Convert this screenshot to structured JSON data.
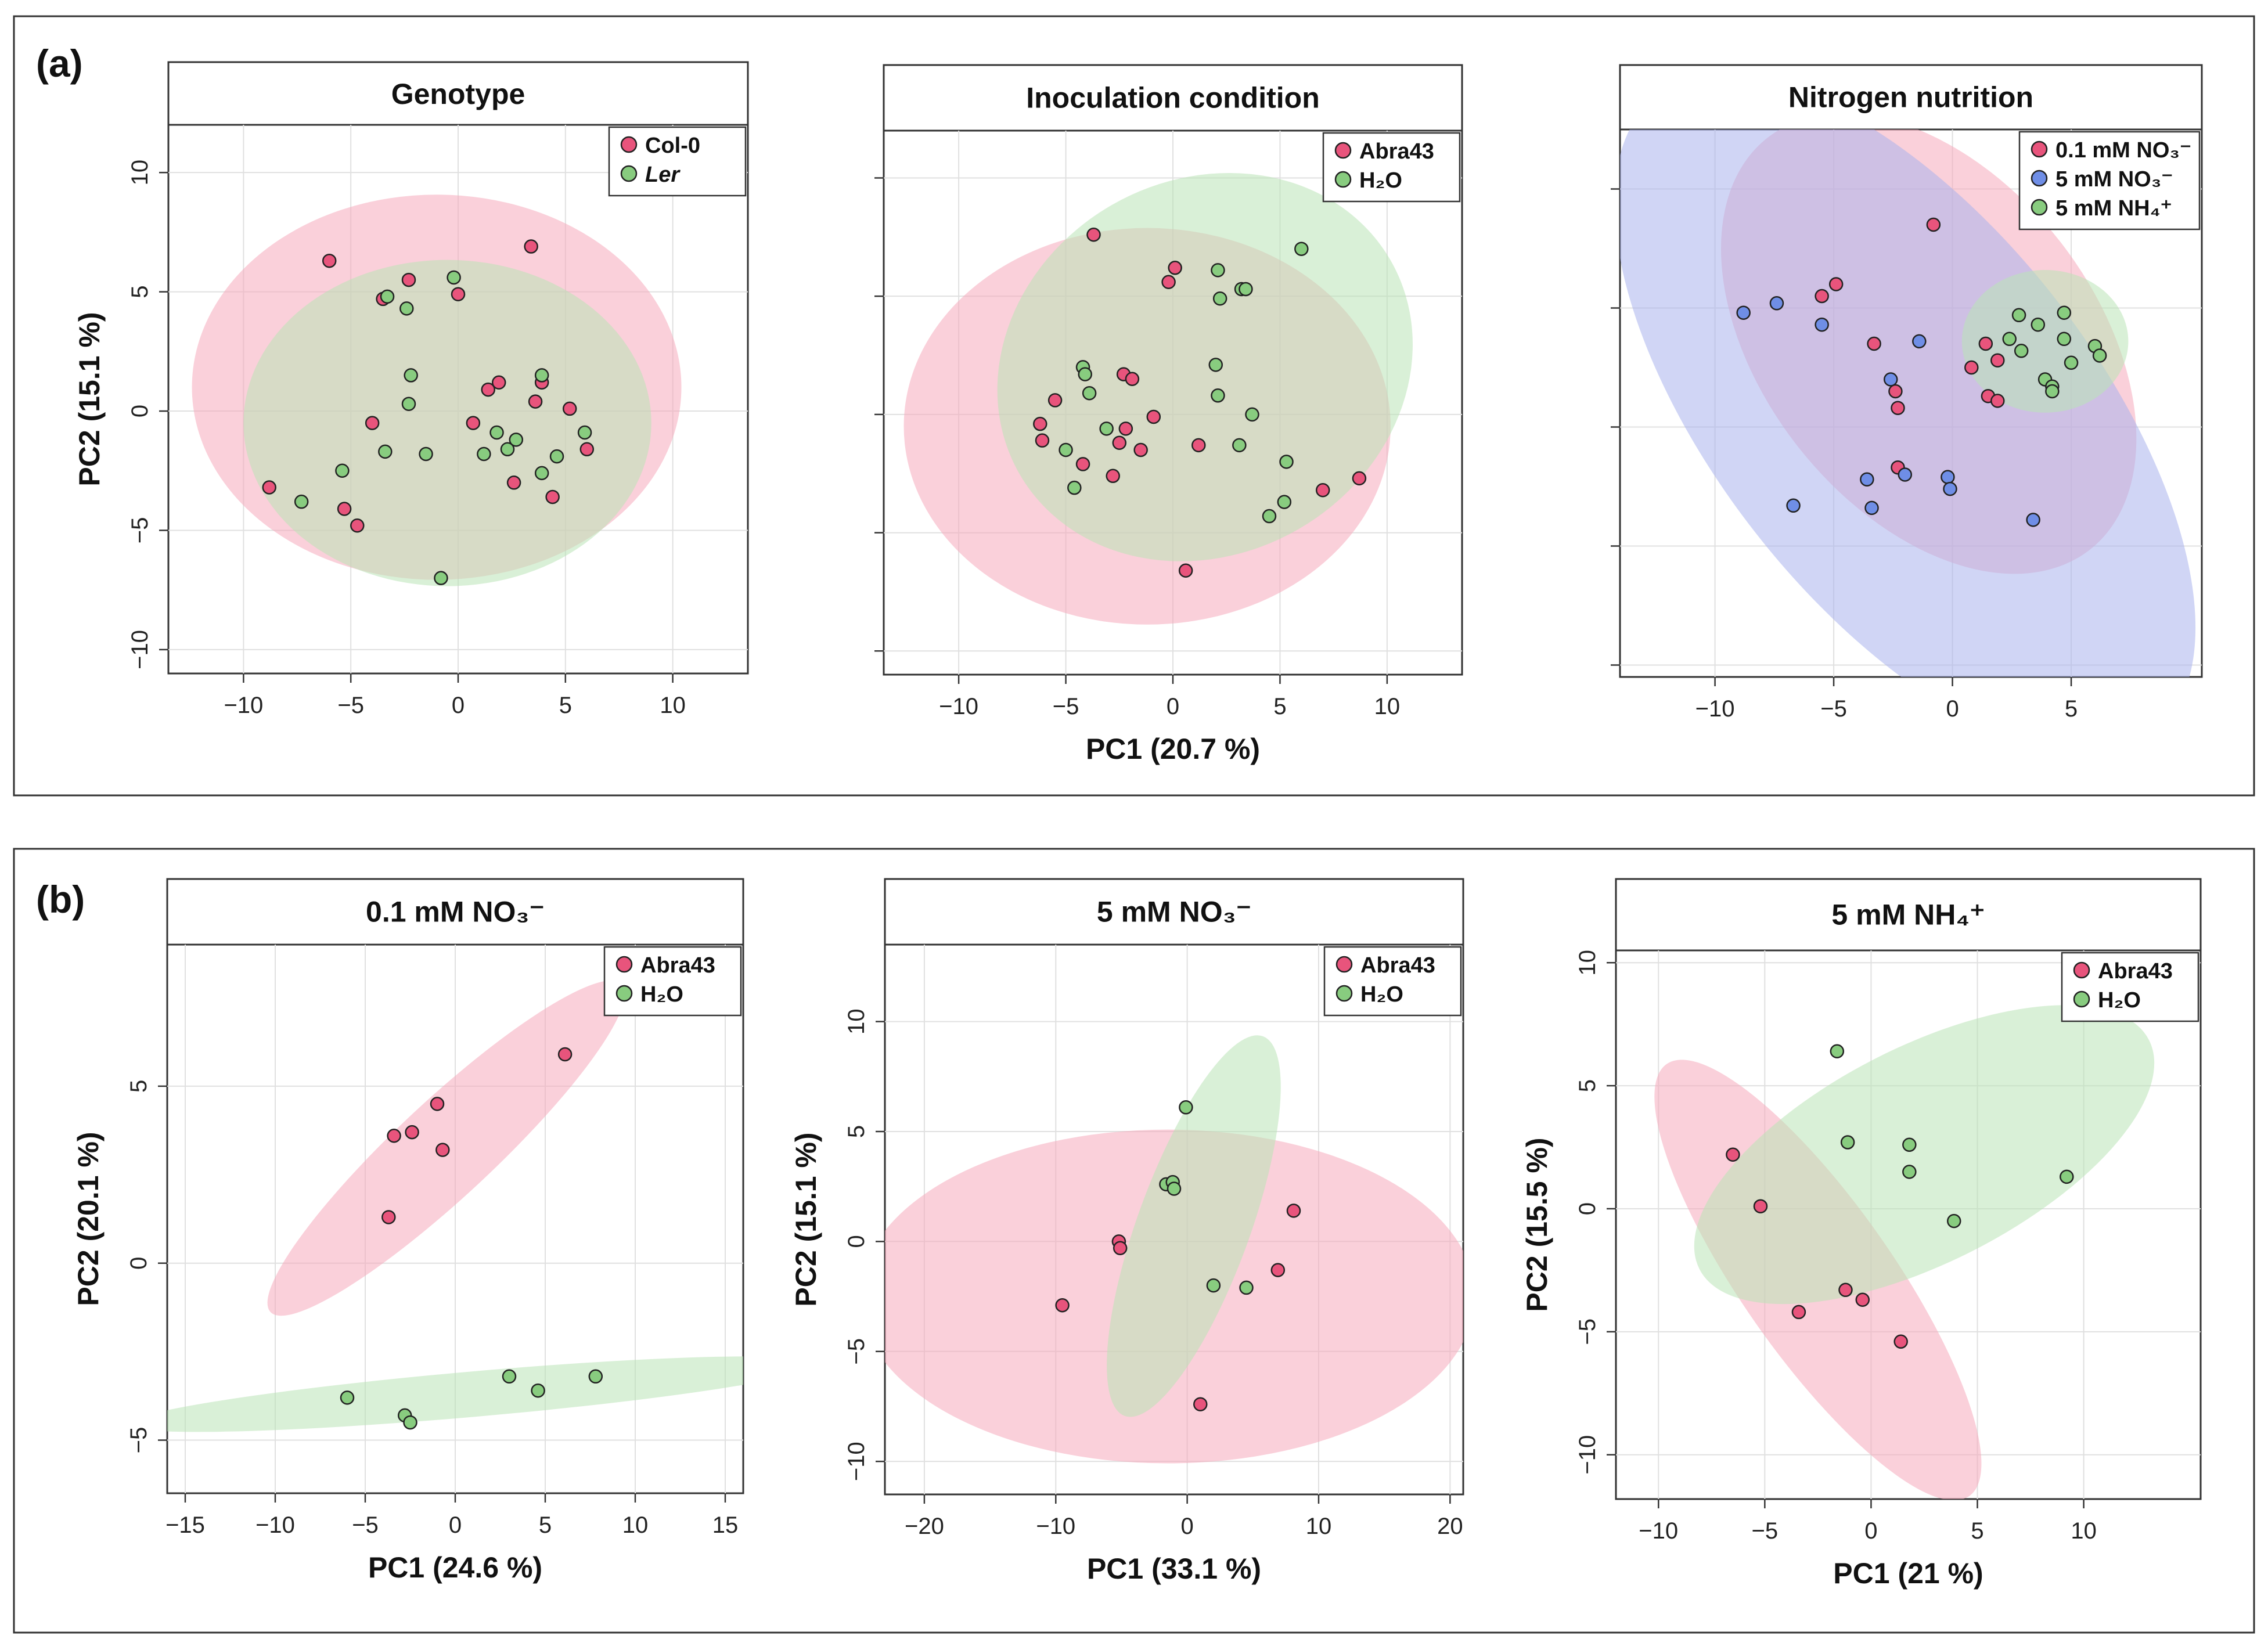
{
  "figure": {
    "panel_a_label": "(a)",
    "panel_b_label": "(b)"
  },
  "colors": {
    "pink_fill": "#f5a9bc",
    "pink_point": "#e8547c",
    "green_fill": "#b9e3b7",
    "green_point": "#88cc7f",
    "blue_fill": "#a9b3ec",
    "blue_point": "#6f8ee6"
  },
  "chart_data": [
    {
      "type": "scatter",
      "title": "Genotype",
      "xlabel": "",
      "ylabel": "PC2 (15.1 %)",
      "xlim": [
        -13.5,
        13.5
      ],
      "ylim": [
        -11,
        12
      ],
      "xticks": [
        "−10",
        "−5",
        "0",
        "5",
        "10"
      ],
      "yticks": [
        "10",
        "5",
        "0",
        "−5",
        "−10"
      ],
      "show_x_ticklabels": true,
      "show_y_ticklabels": true,
      "legend_position": "top-right",
      "series": [
        {
          "name": "Col-0",
          "color": "pink",
          "ellipse": {
            "cx": -1.0,
            "cy": 1.0,
            "rx": 10.8,
            "ry": 8.5,
            "angle": 0
          },
          "points": [
            [
              -6,
              6.3
            ],
            [
              -2.3,
              5.5
            ],
            [
              0,
              4.9
            ],
            [
              3.4,
              6.9
            ],
            [
              -3.5,
              4.7
            ],
            [
              -4,
              -0.5
            ],
            [
              -5.3,
              -4.1
            ],
            [
              -4.7,
              -4.8
            ],
            [
              -8.8,
              -3.2
            ],
            [
              1.4,
              0.9
            ],
            [
              1.9,
              1.2
            ],
            [
              0.7,
              -0.5
            ],
            [
              3.6,
              0.4
            ],
            [
              3.9,
              1.2
            ],
            [
              5.2,
              0.1
            ],
            [
              6,
              -1.6
            ],
            [
              2.6,
              -3
            ],
            [
              4.4,
              -3.6
            ]
          ]
        },
        {
          "name": "Ler",
          "color": "green",
          "ellipse": {
            "cx": -0.5,
            "cy": -0.5,
            "rx": 9.0,
            "ry": 7.2,
            "angle": 0
          },
          "points": [
            [
              -3.3,
              4.8
            ],
            [
              -2.4,
              4.3
            ],
            [
              -0.2,
              5.6
            ],
            [
              -2.2,
              1.5
            ],
            [
              -2.3,
              0.3
            ],
            [
              -3.4,
              -1.7
            ],
            [
              -1.5,
              -1.8
            ],
            [
              -5.4,
              -2.5
            ],
            [
              -7.3,
              -3.8
            ],
            [
              -0.8,
              -7
            ],
            [
              1.2,
              -1.8
            ],
            [
              1.8,
              -0.9
            ],
            [
              2.3,
              -1.6
            ],
            [
              2.7,
              -1.2
            ],
            [
              3.9,
              -2.6
            ],
            [
              4.6,
              -1.9
            ],
            [
              5.9,
              -0.9
            ],
            [
              3.9,
              1.5
            ]
          ]
        }
      ]
    },
    {
      "type": "scatter",
      "title": "Inoculation condition",
      "xlabel": "PC1 (20.7 %)",
      "ylabel": "",
      "xlim": [
        -13.5,
        13.5
      ],
      "ylim": [
        -11,
        12
      ],
      "xticks": [
        "−10",
        "−5",
        "0",
        "5",
        "10"
      ],
      "yticks": [],
      "show_x_ticklabels": true,
      "show_y_ticklabels": false,
      "legend_position": "top-right",
      "series": [
        {
          "name": "Abra43",
          "color": "pink",
          "ellipse": {
            "cx": -1.2,
            "cy": -0.5,
            "rx": 10.8,
            "ry": 8.8,
            "angle": 0
          },
          "points": [
            [
              -3.7,
              7.6
            ],
            [
              0.1,
              6.2
            ],
            [
              -0.2,
              5.6
            ],
            [
              -5.5,
              0.6
            ],
            [
              -6.2,
              -0.4
            ],
            [
              -6.1,
              -1.1
            ],
            [
              -4.2,
              -2.1
            ],
            [
              -2.8,
              -2.6
            ],
            [
              -2.5,
              -1.2
            ],
            [
              -2.3,
              1.7
            ],
            [
              -1.9,
              1.5
            ],
            [
              -0.9,
              -0.1
            ],
            [
              -1.5,
              -1.5
            ],
            [
              -2.2,
              -0.6
            ],
            [
              1.2,
              -1.3
            ],
            [
              0.6,
              -6.6
            ],
            [
              8.7,
              -2.7
            ],
            [
              7,
              -3.2
            ]
          ]
        },
        {
          "name": "H₂O",
          "color": "green",
          "ellipse": {
            "cx": 1.5,
            "cy": 2.0,
            "rx": 9.5,
            "ry": 8.3,
            "angle": -30
          },
          "points": [
            [
              -4.2,
              2.0
            ],
            [
              -4.1,
              1.7
            ],
            [
              -3.9,
              0.9
            ],
            [
              -3.1,
              -0.6
            ],
            [
              -5,
              -1.5
            ],
            [
              -4.6,
              -3.1
            ],
            [
              2.1,
              6.1
            ],
            [
              2.2,
              4.9
            ],
            [
              3.2,
              5.3
            ],
            [
              3.4,
              5.3
            ],
            [
              6.0,
              7.0
            ],
            [
              2.0,
              2.1
            ],
            [
              2.1,
              0.8
            ],
            [
              3.7,
              0
            ],
            [
              3.1,
              -1.3
            ],
            [
              5.3,
              -2
            ],
            [
              5.2,
              -3.7
            ],
            [
              4.5,
              -4.3
            ]
          ]
        }
      ]
    },
    {
      "type": "scatter",
      "title": "Nitrogen nutrition",
      "xlabel": "",
      "ylabel": "",
      "xlim": [
        -14,
        10.5
      ],
      "ylim": [
        -10.5,
        12.5
      ],
      "xticks": [
        "−10",
        "−5",
        "0",
        "5"
      ],
      "yticks": [],
      "show_x_ticklabels": true,
      "show_y_ticklabels": false,
      "legend_position": "top-right",
      "series": [
        {
          "name": "0.1 mM NO₃⁻",
          "color": "pink",
          "ellipse": {
            "cx": -1.0,
            "cy": 3.5,
            "rx": 7.0,
            "ry": 11.0,
            "angle": -38
          },
          "points": [
            [
              -0.8,
              8.5
            ],
            [
              -4.9,
              6.0
            ],
            [
              -5.5,
              5.5
            ],
            [
              -3.3,
              3.5
            ],
            [
              -2.4,
              1.5
            ],
            [
              -2.3,
              0.8
            ],
            [
              -2.3,
              -1.7
            ],
            [
              1.4,
              3.5
            ],
            [
              1.9,
              2.8
            ],
            [
              0.8,
              2.5
            ],
            [
              1.5,
              1.3
            ],
            [
              1.9,
              1.1
            ]
          ]
        },
        {
          "name": "5 mM NO₃⁻",
          "color": "blue",
          "ellipse": {
            "cx": -2.0,
            "cy": 0.5,
            "rx": 8.0,
            "ry": 17.0,
            "angle": -38
          },
          "points": [
            [
              -8.8,
              4.8
            ],
            [
              -7.4,
              5.2
            ],
            [
              -5.5,
              4.3
            ],
            [
              -2.0,
              -2.0
            ],
            [
              -3.4,
              -3.4
            ],
            [
              -3.6,
              -2.2
            ],
            [
              -2.6,
              2.0
            ],
            [
              -1.4,
              3.6
            ],
            [
              -0.2,
              -2.1
            ],
            [
              -0.1,
              -2.6
            ],
            [
              -6.7,
              -3.3
            ],
            [
              3.4,
              -3.9
            ]
          ]
        },
        {
          "name": "5 mM NH₄⁺",
          "color": "green",
          "ellipse": {
            "cx": 3.9,
            "cy": 3.6,
            "rx": 3.5,
            "ry": 3.0,
            "angle": 0
          },
          "points": [
            [
              2.8,
              4.7
            ],
            [
              4.7,
              4.8
            ],
            [
              3.6,
              4.3
            ],
            [
              2.4,
              3.7
            ],
            [
              2.9,
              3.2
            ],
            [
              4.7,
              3.7
            ],
            [
              6.0,
              3.4
            ],
            [
              6.2,
              3.0
            ],
            [
              5.0,
              2.7
            ],
            [
              3.9,
              2.0
            ],
            [
              4.2,
              1.7
            ],
            [
              4.2,
              1.5
            ]
          ]
        }
      ]
    },
    {
      "type": "scatter",
      "title": "0.1 mM NO₃⁻",
      "xlabel": "PC1 (24.6 %)",
      "ylabel": "PC2 (20.1 %)",
      "xlim": [
        -16,
        16
      ],
      "ylim": [
        -6.5,
        9
      ],
      "xticks": [
        "−15",
        "−10",
        "−5",
        "0",
        "5",
        "10",
        "15"
      ],
      "yticks": [
        "5",
        "0",
        "−5"
      ],
      "show_x_ticklabels": true,
      "show_y_ticklabels": true,
      "legend_position": "top-right",
      "series": [
        {
          "name": "Abra43",
          "color": "pink",
          "ellipse": {
            "cx": -0.5,
            "cy": 3.25,
            "rx": 9.0,
            "ry": 1.8,
            "angle": -43
          },
          "points": [
            [
              -3.4,
              3.6
            ],
            [
              -2.4,
              3.7
            ],
            [
              -1.0,
              4.5
            ],
            [
              -0.7,
              3.2
            ],
            [
              6.1,
              5.9
            ],
            [
              -3.7,
              1.3
            ]
          ]
        },
        {
          "name": "H₂O",
          "color": "green",
          "ellipse": {
            "cx": 1.0,
            "cy": -3.7,
            "rx": 13.0,
            "ry": 0.85,
            "angle": -5
          },
          "points": [
            [
              -6.0,
              -3.8
            ],
            [
              -2.8,
              -4.3
            ],
            [
              -2.5,
              -4.5
            ],
            [
              3.0,
              -3.2
            ],
            [
              4.6,
              -3.6
            ],
            [
              7.8,
              -3.2
            ]
          ]
        }
      ]
    },
    {
      "type": "scatter",
      "title": "5 mM NO₃⁻",
      "xlabel": "PC1 (33.1 %)",
      "ylabel": "PC2 (15.1 %)",
      "xlim": [
        -23,
        21
      ],
      "ylim": [
        -11.5,
        13.5
      ],
      "xticks": [
        "−20",
        "−10",
        "0",
        "10",
        "20"
      ],
      "yticks": [
        "10",
        "5",
        "0",
        "−5",
        "−10"
      ],
      "show_x_ticklabels": true,
      "show_y_ticklabels": true,
      "legend_position": "top-right",
      "series": [
        {
          "name": "Abra43",
          "color": "pink",
          "ellipse": {
            "cx": -1.5,
            "cy": -2.5,
            "rx": 17.5,
            "ry": 9.5,
            "angle": 0
          },
          "points": [
            [
              -9.5,
              -2.9
            ],
            [
              -5.2,
              0
            ],
            [
              -5.1,
              -0.3
            ],
            [
              1.0,
              -7.4
            ],
            [
              6.9,
              -1.3
            ],
            [
              8.1,
              1.4
            ]
          ]
        },
        {
          "name": "H₂O",
          "color": "green",
          "ellipse": {
            "cx": 0.5,
            "cy": 0.7,
            "rx": 11.5,
            "ry": 3.2,
            "angle": -70
          },
          "points": [
            [
              -0.1,
              6.1
            ],
            [
              -1.6,
              2.6
            ],
            [
              -1.1,
              2.7
            ],
            [
              -1.0,
              2.4
            ],
            [
              2.0,
              -2.0
            ],
            [
              4.5,
              -2.1
            ]
          ]
        }
      ]
    },
    {
      "type": "scatter",
      "title": "5 mM NH₄⁺",
      "xlabel": "PC1 (21 %)",
      "ylabel": "PC2 (15.5 %)",
      "xlim": [
        -12,
        15.5
      ],
      "ylim": [
        -11.8,
        10.5
      ],
      "xticks": [
        "−10",
        "−5",
        "0",
        "5",
        "10"
      ],
      "yticks": [
        "10",
        "5",
        "0",
        "−5",
        "−10"
      ],
      "show_x_ticklabels": true,
      "show_y_ticklabels": true,
      "legend_position": "top-right",
      "series": [
        {
          "name": "Abra43",
          "color": "pink",
          "ellipse": {
            "cx": -2.5,
            "cy": -2.9,
            "rx": 11.5,
            "ry": 3.3,
            "angle": 55
          },
          "points": [
            [
              -6.5,
              2.2
            ],
            [
              -5.2,
              0.1
            ],
            [
              -3.4,
              -4.2
            ],
            [
              -1.2,
              -3.3
            ],
            [
              -0.4,
              -3.7
            ],
            [
              1.4,
              -5.4
            ]
          ]
        },
        {
          "name": "H₂O",
          "color": "green",
          "ellipse": {
            "cx": 2.5,
            "cy": 2.2,
            "rx": 11.0,
            "ry": 4.7,
            "angle": -27
          },
          "points": [
            [
              -1.6,
              6.4
            ],
            [
              -1.1,
              2.7
            ],
            [
              1.8,
              2.6
            ],
            [
              1.8,
              1.5
            ],
            [
              3.9,
              -0.5
            ],
            [
              9.2,
              1.3
            ]
          ]
        }
      ]
    }
  ]
}
